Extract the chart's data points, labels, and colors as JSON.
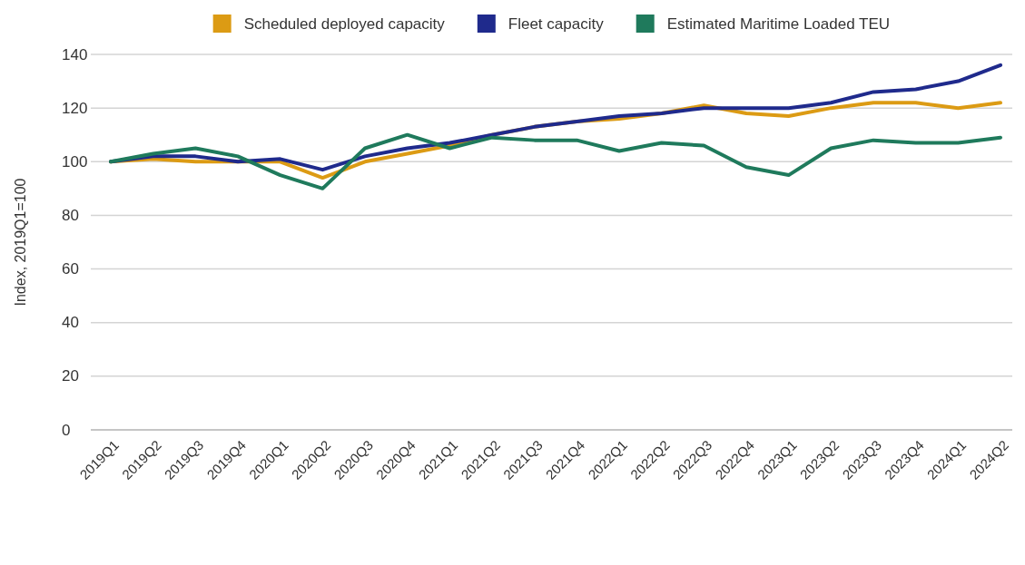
{
  "chart_data": {
    "type": "line",
    "ylabel": "Index, 2019Q1=100",
    "categories": [
      "2019Q1",
      "2019Q2",
      "2019Q3",
      "2019Q4",
      "2020Q1",
      "2020Q2",
      "2020Q3",
      "2020Q4",
      "2021Q1",
      "2021Q2",
      "2021Q3",
      "2021Q4",
      "2022Q1",
      "2022Q2",
      "2022Q3",
      "2022Q4",
      "2023Q1",
      "2023Q2",
      "2023Q3",
      "2023Q4",
      "2024Q1",
      "2024Q2"
    ],
    "series": [
      {
        "name": "Scheduled deployed capacity",
        "color": "#dc9b14",
        "values": [
          100,
          101,
          100,
          100,
          100,
          94,
          100,
          103,
          106,
          110,
          113,
          115,
          116,
          118,
          121,
          118,
          117,
          120,
          122,
          122,
          120,
          122
        ]
      },
      {
        "name": "Fleet capacity",
        "color": "#1f2a8c",
        "values": [
          100,
          102,
          102,
          100,
          101,
          97,
          102,
          105,
          107,
          110,
          113,
          115,
          117,
          118,
          120,
          120,
          120,
          122,
          126,
          127,
          130,
          136
        ]
      },
      {
        "name": "Estimated Maritime Loaded TEU",
        "color": "#1f7a5c",
        "values": [
          100,
          103,
          105,
          102,
          95,
          90,
          105,
          110,
          105,
          109,
          108,
          108,
          104,
          107,
          106,
          98,
          95,
          105,
          108,
          107,
          107,
          109
        ]
      }
    ],
    "ylim": [
      0,
      140
    ],
    "yticks": [
      0,
      20,
      40,
      60,
      80,
      100,
      120,
      140
    ],
    "grid": "y",
    "legend": "top",
    "marker": "none",
    "line_style": "solid"
  }
}
